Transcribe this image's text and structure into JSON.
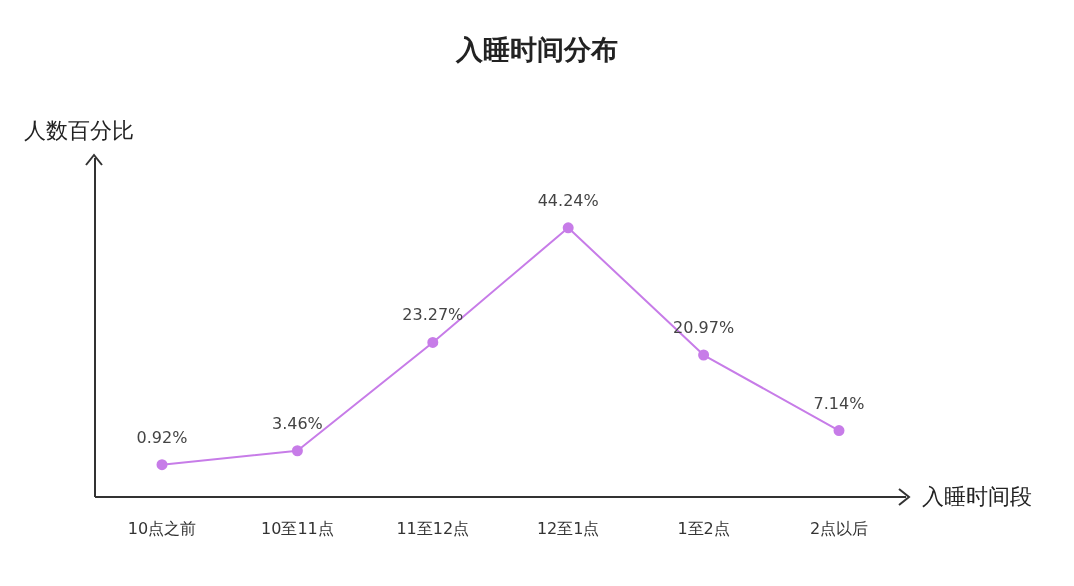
{
  "chart_data": {
    "type": "line",
    "title": "入睡时间分布",
    "xlabel": "入睡时间段",
    "ylabel": "人数百分比",
    "categories": [
      "10点之前",
      "10至11点",
      "11至12点",
      "12至1点",
      "1至2点",
      "2点以后"
    ],
    "series": [
      {
        "color": "#c77ce8",
        "values": [
          0.92,
          3.46,
          23.27,
          44.24,
          20.97,
          7.14
        ],
        "value_labels": [
          "0.92%",
          "3.46%",
          "23.27%",
          "44.24%",
          "20.97%",
          "7.14%"
        ]
      }
    ],
    "ylim": [
      -5,
      57
    ],
    "tick_labels": "x",
    "grid": false,
    "marker": "circle",
    "line_style": "solid"
  }
}
